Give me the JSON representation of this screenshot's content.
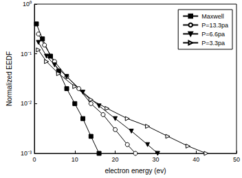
{
  "chart_data": {
    "type": "line",
    "x_label": "electron energy (ev)",
    "y_label": "Normalized EEDF",
    "log": "y",
    "grid": false,
    "legend": "upper right",
    "xlim": [
      0,
      50
    ],
    "xticks": [
      0,
      10,
      20,
      30,
      40,
      50
    ],
    "ylim": [
      0.001,
      1
    ],
    "yticks": [
      {
        "value": 0.001,
        "label": "10⁻³"
      },
      {
        "value": 0.01,
        "label": "10⁻²"
      },
      {
        "value": 0.1,
        "label": "10⁻¹"
      },
      {
        "value": 1,
        "label": "10⁰"
      }
    ],
    "series": [
      {
        "name": "Maxwell",
        "color": "#000000",
        "marker": "square",
        "x": [
          0.5,
          2,
          4,
          6,
          8,
          10,
          12,
          14,
          16
        ],
        "values": [
          0.4,
          0.2,
          0.09,
          0.045,
          0.02,
          0.01,
          0.005,
          0.0022,
          0.001
        ]
      },
      {
        "name": "P=13.3pa",
        "color": "#000000",
        "marker": "circle-open",
        "x": [
          1,
          2.5,
          5,
          8,
          11,
          14,
          17,
          20,
          23,
          25
        ],
        "values": [
          0.25,
          0.15,
          0.07,
          0.035,
          0.02,
          0.01,
          0.006,
          0.003,
          0.0015,
          0.001
        ]
      },
      {
        "name": "P=6.6pa",
        "color": "#000000",
        "marker": "triangle-down",
        "x": [
          1,
          3,
          5,
          8,
          12,
          16,
          20,
          24,
          28,
          30.5
        ],
        "values": [
          0.17,
          0.09,
          0.06,
          0.035,
          0.017,
          0.009,
          0.005,
          0.0028,
          0.0015,
          0.001
        ]
      },
      {
        "name": "P=3.3pa",
        "color": "#000000",
        "marker": "triangle-right-open",
        "x": [
          1,
          3,
          6,
          10,
          14,
          18,
          23,
          28,
          33,
          38,
          42.5
        ],
        "values": [
          0.12,
          0.07,
          0.04,
          0.022,
          0.012,
          0.008,
          0.005,
          0.0035,
          0.0022,
          0.0014,
          0.001
        ]
      }
    ]
  }
}
